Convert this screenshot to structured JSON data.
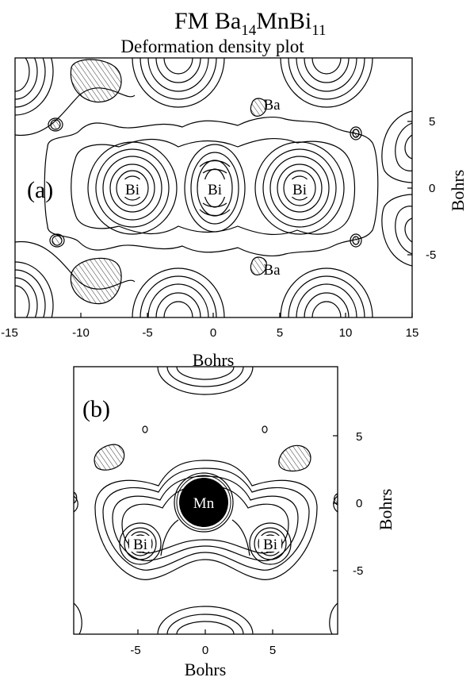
{
  "title": {
    "prefix": "FM Ba",
    "sub1": "14",
    "mid": "MnBi",
    "sub2": "11",
    "subtitle": "Deformation density plot"
  },
  "panel_a": {
    "label": "(a)",
    "x_ticks": [
      "-15",
      "-10",
      "-5",
      "0",
      "5",
      "10",
      "15"
    ],
    "y_ticks": [
      "5",
      "0",
      "-5"
    ],
    "x_axis_label": "Bohrs",
    "y_axis_label": "Bohrs",
    "atoms": [
      "Bi",
      "Bi",
      "Bi",
      "Ba",
      "Ba"
    ]
  },
  "panel_b": {
    "label": "(b)",
    "x_ticks": [
      "-5",
      "0",
      "5"
    ],
    "y_ticks": [
      "5",
      "0",
      "-5"
    ],
    "x_axis_label": "Bohrs",
    "y_axis_label": "Bohrs",
    "atoms": [
      "Mn",
      "Bi",
      "Bi"
    ]
  },
  "colors": {
    "ink": "#000000",
    "background": "#ffffff"
  }
}
